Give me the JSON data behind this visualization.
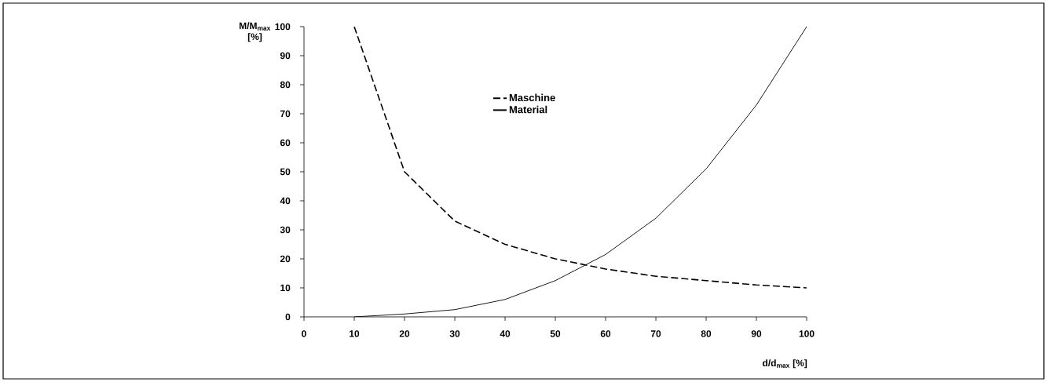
{
  "chart_data": {
    "type": "line",
    "xlabel": "d/d$_{max}$ [%]",
    "ylabel": "M/M$_{max}$\n[%]",
    "x": [
      10,
      20,
      30,
      40,
      50,
      60,
      70,
      80,
      90,
      100
    ],
    "series": [
      {
        "name": "Maschine",
        "color": "#000000",
        "line_style": "dashed",
        "values": [
          100,
          50,
          33,
          25,
          20,
          16.5,
          14,
          12.5,
          11,
          10
        ]
      },
      {
        "name": "Material",
        "color": "#000000",
        "line_style": "solid",
        "values": [
          0,
          1,
          2.5,
          6,
          12.5,
          21.5,
          34,
          51,
          73,
          100
        ]
      }
    ],
    "xlim": [
      0,
      100
    ],
    "ylim": [
      0,
      100
    ],
    "xticks": [
      0,
      10,
      20,
      30,
      40,
      50,
      60,
      70,
      80,
      90,
      100
    ],
    "yticks": [
      0,
      10,
      20,
      30,
      40,
      50,
      60,
      70,
      80,
      90,
      100
    ],
    "grid": false,
    "legend": "top",
    "marker": "none"
  }
}
